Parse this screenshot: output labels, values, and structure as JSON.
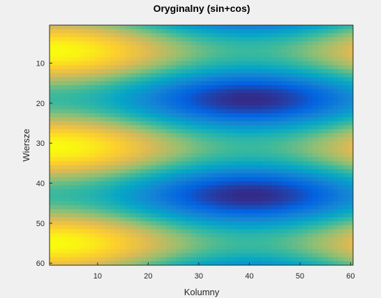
{
  "chart_data": {
    "type": "heatmap",
    "title": "Oryginalny (sin+cos)",
    "xlabel": "Kolumny",
    "ylabel": "Wiersze",
    "x_range": [
      1,
      60
    ],
    "y_range": [
      1,
      60
    ],
    "x_ticks": [
      10,
      20,
      30,
      40,
      50,
      60
    ],
    "y_ticks": [
      10,
      20,
      30,
      40,
      50,
      60
    ],
    "y_direction": "reversed",
    "grid": false,
    "legend": "none",
    "colormap": "parula",
    "colormap_stops": [
      "#352a87",
      "#0363e1",
      "#1485d4",
      "#06a7c6",
      "#38b99e",
      "#92bf73",
      "#d9ba56",
      "#fcce2e",
      "#f9fb0e"
    ],
    "function": "sin(c) + cos(r) sampled on a 60x60 grid; maxima near columns 1 and 40 at rows 7, 31, 55; minima near columns 21 and 60 at rows 19 and 43",
    "value_range": [
      -2,
      2
    ]
  }
}
